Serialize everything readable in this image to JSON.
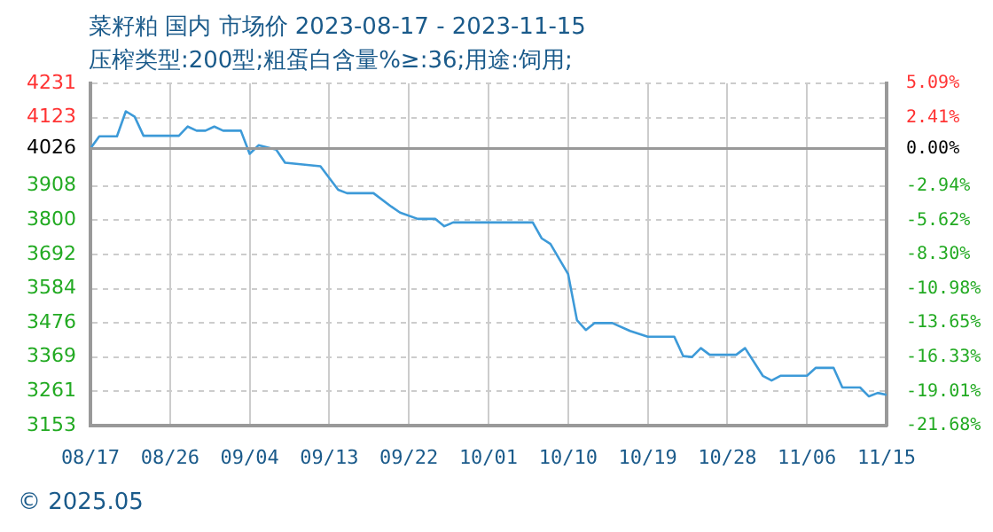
{
  "chart_data": {
    "type": "line",
    "title": "菜籽粕 国内 市场价 2023-08-17 - 2023-11-15",
    "subtitle": "压榨类型:200型;粗蛋白含量%≥:36;用途:饲用;",
    "x": [
      "2023-08-17",
      "2023-08-18",
      "2023-08-20",
      "2023-08-21",
      "2023-08-22",
      "2023-08-23",
      "2023-08-27",
      "2023-08-28",
      "2023-08-29",
      "2023-08-30",
      "2023-08-31",
      "2023-09-01",
      "2023-09-03",
      "2023-09-04",
      "2023-09-05",
      "2023-09-07",
      "2023-09-08",
      "2023-09-12",
      "2023-09-14",
      "2023-09-15",
      "2023-09-18",
      "2023-09-20",
      "2023-09-21",
      "2023-09-23",
      "2023-09-25",
      "2023-09-26",
      "2023-09-27",
      "2023-10-06",
      "2023-10-07",
      "2023-10-08",
      "2023-10-10",
      "2023-10-11",
      "2023-10-12",
      "2023-10-13",
      "2023-10-15",
      "2023-10-17",
      "2023-10-19",
      "2023-10-22",
      "2023-10-23",
      "2023-10-24",
      "2023-10-25",
      "2023-10-26",
      "2023-10-29",
      "2023-10-30",
      "2023-11-01",
      "2023-11-02",
      "2023-11-03",
      "2023-11-06",
      "2023-11-07",
      "2023-11-09",
      "2023-11-10",
      "2023-11-12",
      "2023-11-13",
      "2023-11-14",
      "2023-11-15"
    ],
    "series": [
      {
        "color": "#3d9ad8",
        "values": [
          4026,
          4064,
          4064,
          4143,
          4126,
          4066,
          4066,
          4095,
          4082,
          4082,
          4095,
          4082,
          4082,
          4009,
          4036,
          4022,
          3981,
          3970,
          3896,
          3885,
          3885,
          3843,
          3824,
          3804,
          3804,
          3781,
          3793,
          3793,
          3743,
          3725,
          3630,
          3485,
          3454,
          3476,
          3476,
          3451,
          3433,
          3433,
          3372,
          3369,
          3397,
          3376,
          3376,
          3397,
          3310,
          3295,
          3310,
          3310,
          3335,
          3335,
          3273,
          3273,
          3245,
          3256,
          3250
        ]
      }
    ],
    "xlim": [
      "2023-08-17",
      "2023-11-15"
    ],
    "xticks": [
      {
        "value": "2023-08-17",
        "label": "08/17"
      },
      {
        "value": "2023-08-26",
        "label": "08/26"
      },
      {
        "value": "2023-09-04",
        "label": "09/04"
      },
      {
        "value": "2023-09-13",
        "label": "09/13"
      },
      {
        "value": "2023-09-22",
        "label": "09/22"
      },
      {
        "value": "2023-10-01",
        "label": "10/01"
      },
      {
        "value": "2023-10-10",
        "label": "10/10"
      },
      {
        "value": "2023-10-19",
        "label": "10/19"
      },
      {
        "value": "2023-10-28",
        "label": "10/28"
      },
      {
        "value": "2023-11-06",
        "label": "11/06"
      },
      {
        "value": "2023-11-15",
        "label": "11/15"
      }
    ],
    "ylim": [
      3153,
      4231
    ],
    "yticks": [
      3153,
      3261,
      3369,
      3476,
      3584,
      3692,
      3800,
      3908,
      4026,
      4123,
      4231
    ],
    "y2lim": [
      -21.68,
      5.09
    ],
    "y2ticks": [
      {
        "value": -21.68,
        "label": "-21.68%"
      },
      {
        "value": -19.01,
        "label": "-19.01%"
      },
      {
        "value": -16.33,
        "label": "-16.33%"
      },
      {
        "value": -13.65,
        "label": "-13.65%"
      },
      {
        "value": -10.98,
        "label": "-10.98%"
      },
      {
        "value": -8.3,
        "label": "-8.30%"
      },
      {
        "value": -5.62,
        "label": "-5.62%"
      },
      {
        "value": -2.94,
        "label": "-2.94%"
      },
      {
        "value": 0,
        "label": "0.00%"
      },
      {
        "value": 2.41,
        "label": "2.41%"
      },
      {
        "value": 5.09,
        "label": "5.09%"
      }
    ],
    "ref_lines": [
      {
        "axis": "y",
        "value": 4026,
        "color": "#999999"
      }
    ],
    "grid": true,
    "legend": false,
    "marker": "none",
    "line_style": "solid",
    "annotations": [
      "© 2025.05"
    ]
  }
}
